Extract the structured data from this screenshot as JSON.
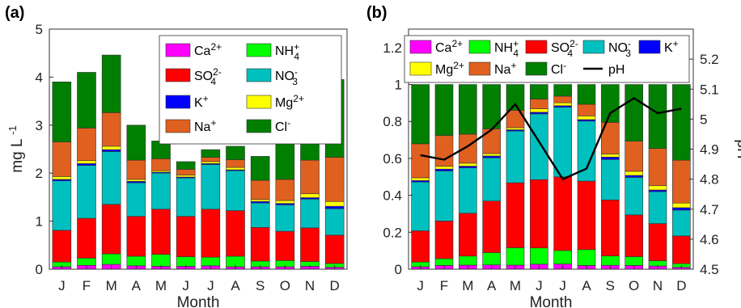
{
  "figure": {
    "panel_a_label": "(a)",
    "panel_b_label": "(b)"
  },
  "colors": {
    "Ca": "#ff00ff",
    "NH4": "#00ff00",
    "SO4": "#ff0000",
    "NO3": "#00bfbf",
    "K": "#0000ff",
    "Mg": "#ffff00",
    "Na": "#e0601f",
    "Cl": "#007f00",
    "pH": "#000000"
  },
  "chart_data": [
    {
      "type": "bar",
      "stacked": true,
      "panel": "a",
      "categories": [
        "J",
        "F",
        "M",
        "A",
        "M",
        "J",
        "J",
        "A",
        "S",
        "O",
        "N",
        "D"
      ],
      "xlabel": "Month",
      "ylabel": "mg L",
      "ylabel_sup": "-1",
      "ylim": [
        0,
        5
      ],
      "yticks": [
        "0",
        "1",
        "2",
        "3",
        "4",
        "5"
      ],
      "legend_position": "top-right",
      "legend_order": [
        "Ca",
        "NH4",
        "SO4",
        "NO3",
        "K",
        "Mg",
        "Na",
        "Cl"
      ],
      "series": [
        {
          "key": "Ca",
          "name": "Ca",
          "sup": "2+",
          "values": [
            0.05,
            0.08,
            0.1,
            0.07,
            0.06,
            0.06,
            0.07,
            0.05,
            0.05,
            0.05,
            0.06,
            0.04
          ]
        },
        {
          "key": "NH4",
          "name": "NH",
          "sub": "4",
          "sup": "+",
          "values": [
            0.1,
            0.15,
            0.22,
            0.2,
            0.25,
            0.2,
            0.18,
            0.22,
            0.12,
            0.13,
            0.1,
            0.08
          ]
        },
        {
          "key": "SO4",
          "name": "SO",
          "sub": "4",
          "sup": "2-",
          "values": [
            0.66,
            0.83,
            1.03,
            0.83,
            0.94,
            0.84,
            1.0,
            0.95,
            0.7,
            0.61,
            0.7,
            0.59
          ]
        },
        {
          "key": "NO3",
          "name": "NO",
          "sub": "3",
          "sup": "-",
          "values": [
            1.03,
            1.1,
            1.1,
            0.7,
            0.75,
            0.8,
            0.93,
            0.83,
            0.51,
            0.55,
            0.6,
            0.55
          ]
        },
        {
          "key": "K",
          "name": "K",
          "sup": "+",
          "values": [
            0.03,
            0.04,
            0.04,
            0.03,
            0.02,
            0.02,
            0.02,
            0.02,
            0.03,
            0.03,
            0.03,
            0.05
          ]
        },
        {
          "key": "Mg",
          "name": "Mg",
          "sup": "2+",
          "values": [
            0.06,
            0.06,
            0.07,
            0.04,
            0.03,
            0.04,
            0.04,
            0.05,
            0.04,
            0.06,
            0.08,
            0.1
          ]
        },
        {
          "key": "Na",
          "name": "Na",
          "sup": "+",
          "values": [
            0.72,
            0.68,
            0.7,
            0.4,
            0.25,
            0.12,
            0.09,
            0.16,
            0.4,
            0.44,
            0.7,
            0.92
          ]
        },
        {
          "key": "Cl",
          "name": "Cl",
          "sup": "-",
          "values": [
            1.25,
            1.16,
            1.2,
            0.73,
            0.37,
            0.16,
            0.16,
            0.28,
            0.5,
            0.83,
            1.2,
            1.62
          ]
        }
      ]
    },
    {
      "type": "bar",
      "stacked": true,
      "panel": "b",
      "categories": [
        "J",
        "F",
        "M",
        "A",
        "M",
        "J",
        "J",
        "A",
        "S",
        "O",
        "N",
        "D"
      ],
      "xlabel": "Month",
      "ylim": [
        0,
        1.3
      ],
      "yticks": [
        "0",
        "0.2",
        "0.4",
        "0.6",
        "0.8",
        "1",
        "1.2"
      ],
      "y2label": "pH",
      "y2lim": [
        4.5,
        5.3
      ],
      "y2ticks": [
        "4.5",
        "4.6",
        "4.7",
        "4.8",
        "4.9",
        "5",
        "5.1",
        "5.2"
      ],
      "legend_position": "top",
      "legend_order": [
        "Ca",
        "NH4",
        "SO4",
        "NO3",
        "K",
        "Mg",
        "Na",
        "Cl",
        "pH"
      ],
      "series": [
        {
          "key": "Ca",
          "name": "Ca",
          "sup": "2+",
          "values": [
            0.013,
            0.02,
            0.022,
            0.023,
            0.022,
            0.027,
            0.028,
            0.02,
            0.021,
            0.02,
            0.017,
            0.01
          ]
        },
        {
          "key": "NH4",
          "name": "NH",
          "sub": "4",
          "sup": "+",
          "values": [
            0.026,
            0.037,
            0.049,
            0.067,
            0.094,
            0.088,
            0.073,
            0.086,
            0.051,
            0.048,
            0.029,
            0.02
          ]
        },
        {
          "key": "SO4",
          "name": "SO",
          "sub": "4",
          "sup": "2-",
          "values": [
            0.169,
            0.204,
            0.232,
            0.279,
            0.352,
            0.37,
            0.399,
            0.371,
            0.303,
            0.226,
            0.201,
            0.15
          ]
        },
        {
          "key": "NO3",
          "name": "NO",
          "sub": "3",
          "sup": "-",
          "values": [
            0.264,
            0.271,
            0.246,
            0.234,
            0.28,
            0.356,
            0.377,
            0.325,
            0.219,
            0.203,
            0.173,
            0.14
          ]
        },
        {
          "key": "K",
          "name": "K",
          "sup": "+",
          "values": [
            0.008,
            0.01,
            0.009,
            0.01,
            0.007,
            0.009,
            0.008,
            0.008,
            0.013,
            0.011,
            0.009,
            0.013
          ]
        },
        {
          "key": "Mg",
          "name": "Mg",
          "sup": "2+",
          "values": [
            0.015,
            0.015,
            0.016,
            0.013,
            0.011,
            0.018,
            0.016,
            0.02,
            0.017,
            0.022,
            0.023,
            0.025
          ]
        },
        {
          "key": "Na",
          "name": "Na",
          "sup": "+",
          "values": [
            0.184,
            0.167,
            0.157,
            0.134,
            0.094,
            0.053,
            0.036,
            0.063,
            0.171,
            0.163,
            0.202,
            0.232
          ]
        },
        {
          "key": "Cl",
          "name": "Cl",
          "sup": "-",
          "values": [
            0.321,
            0.276,
            0.269,
            0.24,
            0.14,
            0.079,
            0.063,
            0.107,
            0.205,
            0.307,
            0.346,
            0.41
          ]
        }
      ],
      "line": {
        "key": "pH",
        "name": "pH",
        "axis": "right",
        "values": [
          4.88,
          4.865,
          4.91,
          4.965,
          5.05,
          4.925,
          4.8,
          4.835,
          5.02,
          5.07,
          5.02,
          5.035
        ]
      }
    }
  ]
}
